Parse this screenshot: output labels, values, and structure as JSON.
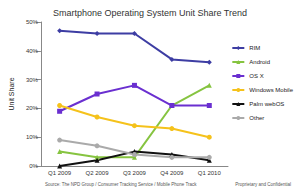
{
  "chart_data": {
    "type": "line",
    "title": "Smartphone Operating System Unit Share Trend",
    "y_label": "Unit Share",
    "source": "Source: The NPD Group / Consumer Tracking Service / Mobile Phone Track",
    "footer": "Proprietary and Confidential",
    "categories": [
      "Q1 2009",
      "Q2 2009",
      "Q3 2009",
      "Q4 2009",
      "Q1 2010"
    ],
    "series": [
      {
        "name": "RIM",
        "color": "#3d3da3",
        "marker": "diamond",
        "values": [
          47,
          46,
          46,
          37,
          36
        ]
      },
      {
        "name": "Android",
        "color": "#86c440",
        "marker": "triangle",
        "values": [
          5,
          3,
          3,
          21,
          28
        ]
      },
      {
        "name": "OS X",
        "color": "#6a2fd0",
        "marker": "rect",
        "values": [
          19,
          25,
          28,
          21,
          21
        ]
      },
      {
        "name": "Windows Mobile",
        "color": "#f5c21b",
        "marker": "circle",
        "values": [
          21,
          17,
          14,
          13,
          10
        ]
      },
      {
        "name": "Palm webOS",
        "color": "#111111",
        "marker": "triangle",
        "values": [
          0,
          2,
          5,
          4,
          2
        ]
      },
      {
        "name": "Other",
        "color": "#aaaaaa",
        "marker": "circle",
        "values": [
          9,
          7,
          4,
          3,
          3
        ]
      }
    ],
    "ylim": [
      0,
      50
    ],
    "yticks": [
      {
        "value": 0,
        "label": "0%"
      },
      {
        "value": 10,
        "label": "10%"
      },
      {
        "value": 20,
        "label": "20%"
      },
      {
        "value": 30,
        "label": "30%"
      },
      {
        "value": 40,
        "label": "40%"
      },
      {
        "value": 50,
        "label": "50%"
      }
    ],
    "grid": false,
    "legend": "right"
  }
}
